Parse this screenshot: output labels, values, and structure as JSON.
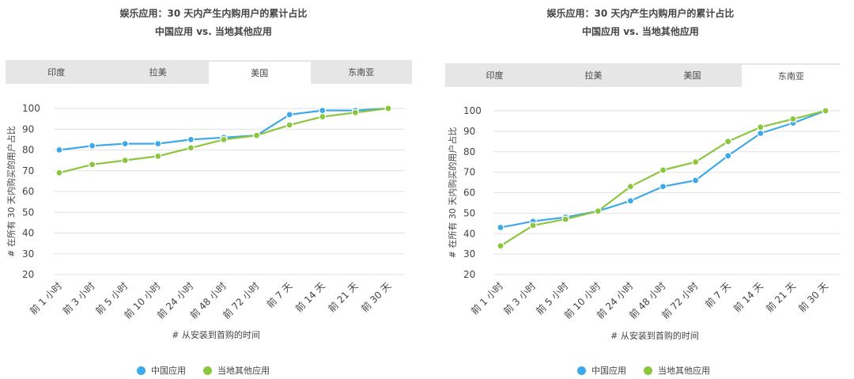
{
  "chart_data": [
    {
      "type": "line",
      "title": "娱乐应用：30 天内产生内购用户的累计占比",
      "subtitle": "中国应用 vs. 当地其他应用",
      "tabs": [
        "印度",
        "拉美",
        "美国",
        "东南亚"
      ],
      "active_tab": 2,
      "categories": [
        "前 1 小时",
        "前 3 小时",
        "前 5 小时",
        "前 10 小时",
        "前 24 小时",
        "前 48 小时",
        "前 72 小时",
        "前 7 天",
        "前 14 天",
        "前 21 天",
        "前 30 天"
      ],
      "series": [
        {
          "name": "中国应用",
          "color": "#3ea9e8",
          "values": [
            80,
            82,
            83,
            83,
            85,
            86,
            87,
            97,
            99,
            99,
            100
          ]
        },
        {
          "name": "当地其他应用",
          "color": "#8cc63f",
          "values": [
            69,
            73,
            75,
            77,
            81,
            85,
            87,
            92,
            96,
            98,
            100
          ]
        }
      ],
      "yticks": [
        "20",
        "30",
        "40",
        "50",
        "60",
        "70",
        "80",
        "90",
        "100"
      ],
      "ylim": [
        20,
        100
      ],
      "xlabel": "# 从安装到首购的时间",
      "ylabel": "# 在所有 30 天内购买的用户占比",
      "grid": true,
      "legend_position": "bottom"
    },
    {
      "type": "line",
      "title": "娱乐应用：30 天内产生内购用户的累计占比",
      "subtitle": "中国应用 vs. 当地其他应用",
      "tabs": [
        "印度",
        "拉美",
        "美国",
        "东南亚"
      ],
      "active_tab": 3,
      "categories": [
        "前 1 小时",
        "前 3 小时",
        "前 5 小时",
        "前 10 小时",
        "前 24 小时",
        "前 48 小时",
        "前 72 小时",
        "前 7 天",
        "前 14 天",
        "前 21 天",
        "前 30 天"
      ],
      "series": [
        {
          "name": "中国应用",
          "color": "#3ea9e8",
          "values": [
            43,
            46,
            48,
            51,
            56,
            63,
            66,
            78,
            89,
            94,
            100
          ]
        },
        {
          "name": "当地其他应用",
          "color": "#8cc63f",
          "values": [
            34,
            44,
            47,
            51,
            63,
            71,
            75,
            85,
            92,
            96,
            100
          ]
        }
      ],
      "yticks": [
        "20",
        "30",
        "40",
        "50",
        "60",
        "70",
        "80",
        "90",
        "100"
      ],
      "ylim": [
        20,
        100
      ],
      "xlabel": "# 从安装到首购的时间",
      "ylabel": "# 在所有 30 天内购买的用户占比",
      "grid": true,
      "legend_position": "bottom"
    }
  ]
}
